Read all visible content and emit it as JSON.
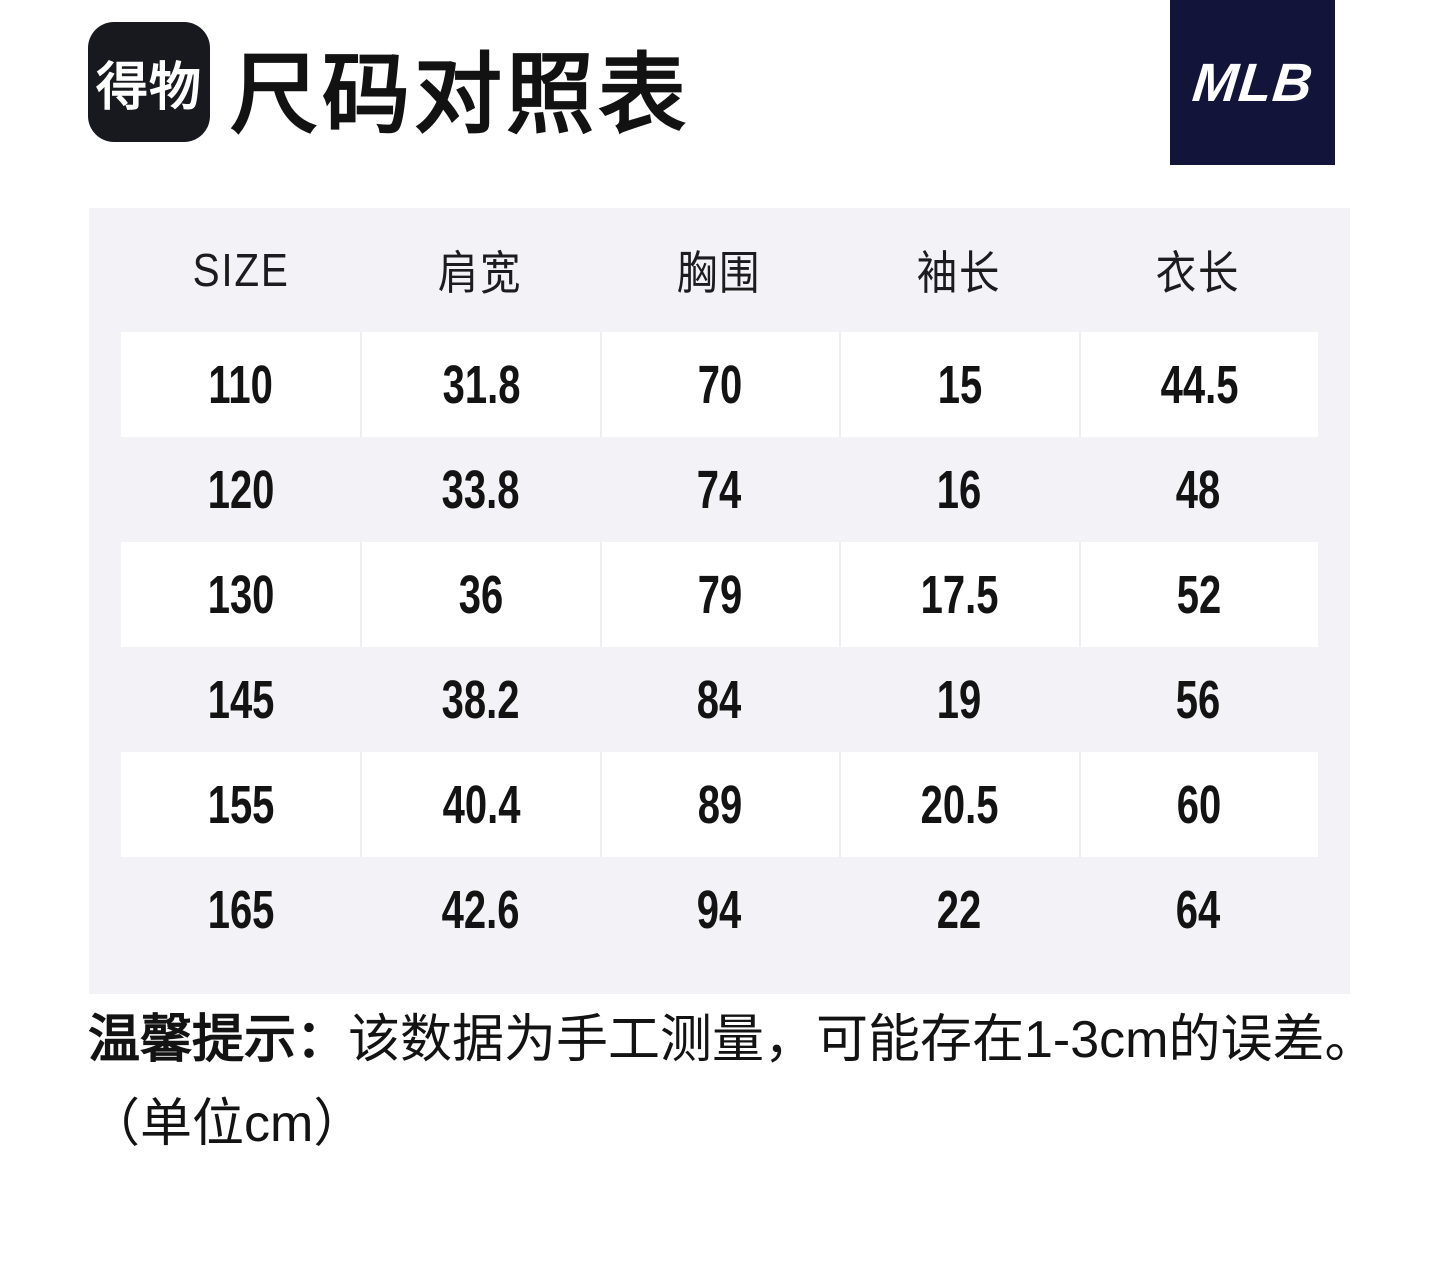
{
  "header": {
    "app_logo_text": "得物",
    "title": "尺码对照表",
    "brand": "MLB"
  },
  "table": {
    "columns": [
      "SIZE",
      "肩宽",
      "胸围",
      "袖长",
      "衣长"
    ],
    "rows": [
      [
        "110",
        "31.8",
        "70",
        "15",
        "44.5"
      ],
      [
        "120",
        "33.8",
        "74",
        "16",
        "48"
      ],
      [
        "130",
        "36",
        "79",
        "17.5",
        "52"
      ],
      [
        "145",
        "38.2",
        "84",
        "19",
        "56"
      ],
      [
        "155",
        "40.4",
        "89",
        "20.5",
        "60"
      ],
      [
        "165",
        "42.6",
        "94",
        "22",
        "64"
      ]
    ]
  },
  "note": {
    "label": "温馨提示：",
    "text": "该数据为手工测量，可能存在1-3cm的误差。",
    "unit": "（单位cm）"
  },
  "colors": {
    "page_bg": "#ffffff",
    "panel_bg": "#f3f3f7",
    "row_band_bg": "#ffffff",
    "cell_divider": "#ededf2",
    "brand_bg": "#12143a",
    "logo_bg": "#17191e",
    "text": "#141414"
  }
}
